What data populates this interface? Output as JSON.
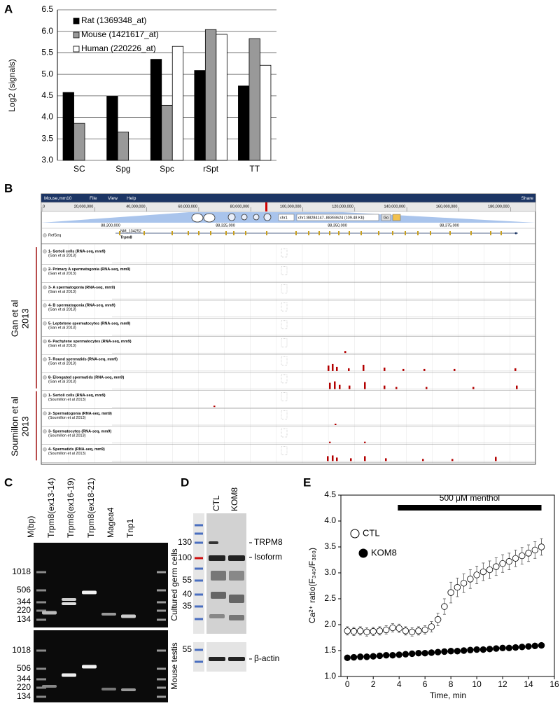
{
  "chart_data": [
    {
      "type": "bar",
      "panel": "A",
      "ylabel": "Log2 (signals)",
      "categories": [
        "SC",
        "Spg",
        "Spc",
        "rSpt",
        "TT"
      ],
      "series": [
        {
          "name": "Rat (1369348_at)",
          "color": "#000000",
          "values": [
            4.58,
            4.49,
            5.35,
            5.09,
            4.73
          ]
        },
        {
          "name": "Mouse (1421617_at)",
          "color": "#999999",
          "values": [
            3.86,
            3.66,
            4.28,
            6.04,
            5.83
          ]
        },
        {
          "name": "Human (220226_at)",
          "color": "#ffffff",
          "values": [
            null,
            null,
            5.65,
            5.93,
            5.21
          ]
        }
      ],
      "ylim": [
        3,
        6.5
      ],
      "yticks": [
        {
          "value": 3,
          "label": "3.0"
        },
        3.5,
        {
          "value": 4,
          "label": "4.0"
        },
        4.5,
        {
          "value": 5,
          "label": "5.0"
        },
        5.5,
        {
          "value": 6,
          "label": "6.0"
        },
        6.5
      ],
      "grid": true
    },
    {
      "type": "line",
      "panel": "E",
      "xlabel": "Time, min",
      "ylabel": "Ca²⁺ ratio(F₃₄₀/F₃₈₀)",
      "annotation": {
        "text": "500 μM menthol",
        "x": [
          3.9,
          15
        ]
      },
      "x": [
        0,
        0.5,
        1,
        1.5,
        2,
        2.5,
        3,
        3.5,
        4,
        4.5,
        5,
        5.5,
        6,
        6.5,
        7,
        7.5,
        8,
        8.5,
        9,
        9.5,
        10,
        10.5,
        11,
        11.5,
        12,
        12.5,
        13,
        13.5,
        14,
        14.5,
        15
      ],
      "series": [
        {
          "name": "CTL",
          "color": "#ffffff",
          "values": [
            1.88,
            1.87,
            1.88,
            1.86,
            1.87,
            1.88,
            1.9,
            1.94,
            1.93,
            1.88,
            1.86,
            1.88,
            1.9,
            1.96,
            2.1,
            2.35,
            2.62,
            2.72,
            2.8,
            2.88,
            2.96,
            3.02,
            3.06,
            3.12,
            3.18,
            3.22,
            3.28,
            3.33,
            3.38,
            3.44,
            3.5
          ],
          "errors": [
            0.08,
            0.08,
            0.08,
            0.08,
            0.08,
            0.08,
            0.08,
            0.08,
            0.08,
            0.08,
            0.08,
            0.08,
            0.08,
            0.1,
            0.12,
            0.15,
            0.2,
            0.18,
            0.18,
            0.18,
            0.17,
            0.17,
            0.17,
            0.17,
            0.17,
            0.16,
            0.16,
            0.16,
            0.16,
            0.16,
            0.16
          ]
        },
        {
          "name": "KOM8",
          "color": "#000000",
          "values": [
            1.36,
            1.37,
            1.38,
            1.38,
            1.39,
            1.4,
            1.41,
            1.41,
            1.42,
            1.43,
            1.44,
            1.45,
            1.45,
            1.46,
            1.47,
            1.48,
            1.49,
            1.49,
            1.5,
            1.51,
            1.52,
            1.52,
            1.53,
            1.54,
            1.55,
            1.55,
            1.56,
            1.57,
            1.58,
            1.59,
            1.6
          ]
        }
      ],
      "xlim": [
        -0.5,
        16
      ],
      "xticks": [
        0,
        2,
        4,
        6,
        8,
        10,
        12,
        14,
        16
      ],
      "ylim": [
        1,
        4.5
      ],
      "yticks": [
        {
          "value": 1,
          "label": "1.0"
        },
        1.5,
        {
          "value": 2,
          "label": "2.0"
        },
        2.5,
        {
          "value": 3,
          "label": "3.0"
        },
        3.5,
        {
          "value": 4,
          "label": "4.0"
        },
        4.5
      ]
    }
  ],
  "browser": {
    "panel": "B",
    "menu": [
      "Mouse,mm10",
      "File",
      "View",
      "Help"
    ],
    "share": "Share",
    "ruler": [
      "0",
      "20,000,000",
      "40,000,000",
      "60,000,000",
      "80,000,000",
      "100,000,000",
      "120,000,000",
      "140,000,000",
      "160,000,000",
      "180,000,000"
    ],
    "chrom": "chr1",
    "locus": "chr1:88284147..88393624 (109.48 Kb)",
    "go": "Go",
    "coords": [
      "88,300,000",
      "88,325,000",
      "88,350,000",
      "88,375,000"
    ],
    "refseq": {
      "label": "RefSeq",
      "accession": "NM_134252",
      "gene": "Trpm8"
    },
    "groups": [
      {
        "name": "Gan et al",
        "year": "2013",
        "tracks": [
          {
            "name": "1- Sertoli cells (RNA-seq, mm9)",
            "source": "(Gan et al 2013)"
          },
          {
            "name": "2- Primary A spermatogonia (RNA-seq, mm9)",
            "source": "(Gan et al 2013)"
          },
          {
            "name": "3- A spermatogonia (RNA-seq, mm9)",
            "source": "(Gan et al 2013)"
          },
          {
            "name": "4- B spermatogonia (RNA-seq, mm9)",
            "source": "(Gan et al 2013)"
          },
          {
            "name": "5- Leptotene spermatocytes (RNA-seq, mm9)",
            "source": "(Gan et al 2013)"
          },
          {
            "name": "6- Pachytene spermatocytes (RNA-seq, mm9)",
            "source": "(Gan et al 2013)"
          },
          {
            "name": "7- Round spermatids (RNA-seq, mm9)",
            "source": "(Gan et al 2013)"
          },
          {
            "name": "8- Elongated spermatids (RNA-seq, mm9)",
            "source": "(Gan et al 2013)"
          }
        ]
      },
      {
        "name": "Soumillon et al",
        "year": "2013",
        "tracks": [
          {
            "name": "1- Sertoli cells (RNA-seq, mm9)",
            "source": "(Soumillon et al 2013)"
          },
          {
            "name": "2- Spermatogonia (RNA-seq, mm9)",
            "source": "(Soumillon et al 2013)"
          },
          {
            "name": "3- Spermatocytes (RNA-seq, mm9)",
            "source": "(Soumillon et al 2013)"
          },
          {
            "name": "4- Spermatids (RNA-seq, mm9)",
            "source": "(Soumillon et al 2013)"
          }
        ]
      }
    ]
  },
  "gel": {
    "panel": "C",
    "lanes": [
      "M(bp)",
      "Trpm8(ex13-14)",
      "Trpm8(ex16-19)",
      "Trpm8(ex18-21)",
      "Magea4",
      "Tnp1"
    ],
    "sizes": [
      "1018",
      "506",
      "344",
      "220",
      "134"
    ],
    "samples": [
      "Cultured germ cells",
      "Mouse testis"
    ]
  },
  "western": {
    "panel": "D",
    "lanes": [
      "CTL",
      "KOM8"
    ],
    "markers": [
      "130",
      "100",
      "55",
      "40",
      "35",
      "55"
    ],
    "bands": [
      "TRPM8",
      "Isoform",
      "β-actin"
    ]
  }
}
